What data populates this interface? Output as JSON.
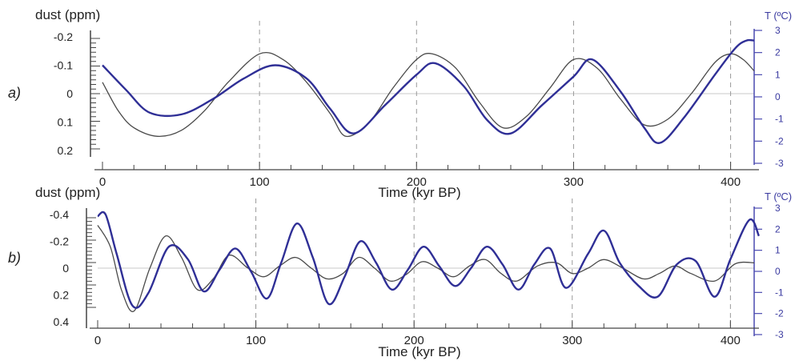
{
  "chart_data": [
    {
      "type": "line",
      "panel_label": "a)",
      "ylabel_left": "dust (ppm)",
      "ylabel_right": "T (ºC)",
      "xlabel": "Time (kyr BP)",
      "x_ticks": [
        "0",
        "100",
        "200",
        "300",
        "400"
      ],
      "xlim": [
        0,
        415
      ],
      "y_left_ticks": [
        "-0.2",
        "-0.1",
        "0",
        "0.1",
        "0.2"
      ],
      "y_left_lim": [
        0.2,
        -0.2
      ],
      "y_right_ticks": [
        "3",
        "2",
        "1",
        "0",
        "-1",
        "-2",
        "-3"
      ],
      "y_right_lim": [
        -3,
        3
      ],
      "grid": "dashed vertical lines at 100, 200, 300, 400",
      "series": [
        {
          "axis": "left",
          "color": "#4a4a4a",
          "x": [
            0,
            10,
            20,
            35,
            50,
            65,
            80,
            100,
            115,
            130,
            145,
            155,
            170,
            185,
            200,
            210,
            225,
            240,
            255,
            270,
            285,
            300,
            315,
            330,
            345,
            360,
            375,
            390,
            400,
            408,
            415
          ],
          "y": [
            -0.04,
            0.06,
            0.12,
            0.15,
            0.13,
            0.06,
            -0.04,
            -0.14,
            -0.12,
            -0.04,
            0.07,
            0.15,
            0.1,
            -0.02,
            -0.12,
            -0.14,
            -0.09,
            0.03,
            0.12,
            0.08,
            -0.02,
            -0.12,
            -0.09,
            0.02,
            0.11,
            0.09,
            0.0,
            -0.11,
            -0.14,
            -0.12,
            -0.08
          ]
        },
        {
          "axis": "right",
          "color": "#2f2f96",
          "x": [
            0,
            15,
            30,
            50,
            70,
            90,
            110,
            130,
            145,
            160,
            180,
            200,
            212,
            230,
            245,
            260,
            280,
            300,
            312,
            330,
            345,
            355,
            370,
            390,
            403,
            410,
            415
          ],
          "y": [
            1.5,
            0.2,
            -1.0,
            -1.1,
            -0.3,
            0.8,
            1.5,
            0.8,
            -0.8,
            -2.1,
            -0.6,
            1.0,
            1.6,
            0.4,
            -1.4,
            -2.1,
            -0.6,
            0.9,
            1.8,
            0.1,
            -1.8,
            -2.6,
            -1.3,
            1.0,
            2.4,
            2.8,
            2.8
          ]
        }
      ]
    },
    {
      "type": "line",
      "panel_label": "b)",
      "ylabel_left": "dust (ppm)",
      "ylabel_right": "T (ºC)",
      "xlabel": "Time (kyr BP)",
      "x_ticks": [
        "0",
        "100",
        "200",
        "300",
        "400"
      ],
      "xlim": [
        0,
        415
      ],
      "y_left_ticks": [
        "-0.4",
        "-0.2",
        "0",
        "0.2",
        "0.4"
      ],
      "y_left_lim": [
        0.5,
        -0.5
      ],
      "y_right_ticks": [
        "3",
        "2",
        "1",
        "0",
        "-1",
        "-2",
        "-3"
      ],
      "y_right_lim": [
        -3,
        3
      ],
      "grid": "dashed vertical lines at 100, 200, 300, 400",
      "series": [
        {
          "axis": "left",
          "color": "#4a4a4a",
          "x": [
            0,
            8,
            15,
            23,
            33,
            43,
            53,
            63,
            73,
            83,
            95,
            105,
            115,
            125,
            135,
            145,
            155,
            165,
            175,
            185,
            195,
            205,
            215,
            225,
            235,
            245,
            255,
            265,
            278,
            290,
            300,
            310,
            320,
            332,
            345,
            355,
            365,
            375,
            390,
            403,
            415
          ],
          "y": [
            -0.4,
            -0.2,
            0.2,
            0.4,
            0.0,
            -0.3,
            -0.1,
            0.2,
            0.1,
            -0.12,
            0.0,
            0.08,
            -0.02,
            -0.1,
            0.0,
            0.1,
            0.05,
            -0.1,
            0.0,
            0.12,
            0.06,
            -0.06,
            0.0,
            0.08,
            -0.02,
            -0.08,
            0.05,
            0.12,
            -0.02,
            -0.05,
            0.05,
            0.0,
            -0.08,
            0.0,
            0.1,
            0.05,
            -0.02,
            0.05,
            0.12,
            -0.04,
            -0.05
          ]
        },
        {
          "axis": "right",
          "color": "#2f2f96",
          "x": [
            0,
            5,
            12,
            22,
            32,
            45,
            57,
            67,
            77,
            87,
            97,
            107,
            116,
            126,
            136,
            146,
            156,
            166,
            176,
            186,
            196,
            206,
            216,
            226,
            236,
            246,
            256,
            266,
            276,
            286,
            296,
            310,
            320,
            330,
            342,
            354,
            366,
            378,
            390,
            400,
            412,
            418
          ],
          "y": [
            2.9,
            3.0,
            0.8,
            -2.1,
            -1.4,
            1.2,
            0.5,
            -1.3,
            -0.1,
            1.1,
            -0.2,
            -1.7,
            0.3,
            2.5,
            0.6,
            -2.0,
            -0.5,
            1.5,
            0.3,
            -1.2,
            -0.1,
            1.2,
            0.1,
            -1.0,
            0.0,
            1.2,
            0.2,
            -1.2,
            0.2,
            1.1,
            -1.1,
            0.8,
            2.1,
            0.3,
            -1.0,
            -1.6,
            0.2,
            0.4,
            -1.6,
            0.5,
            2.7,
            1.8
          ]
        }
      ]
    }
  ]
}
